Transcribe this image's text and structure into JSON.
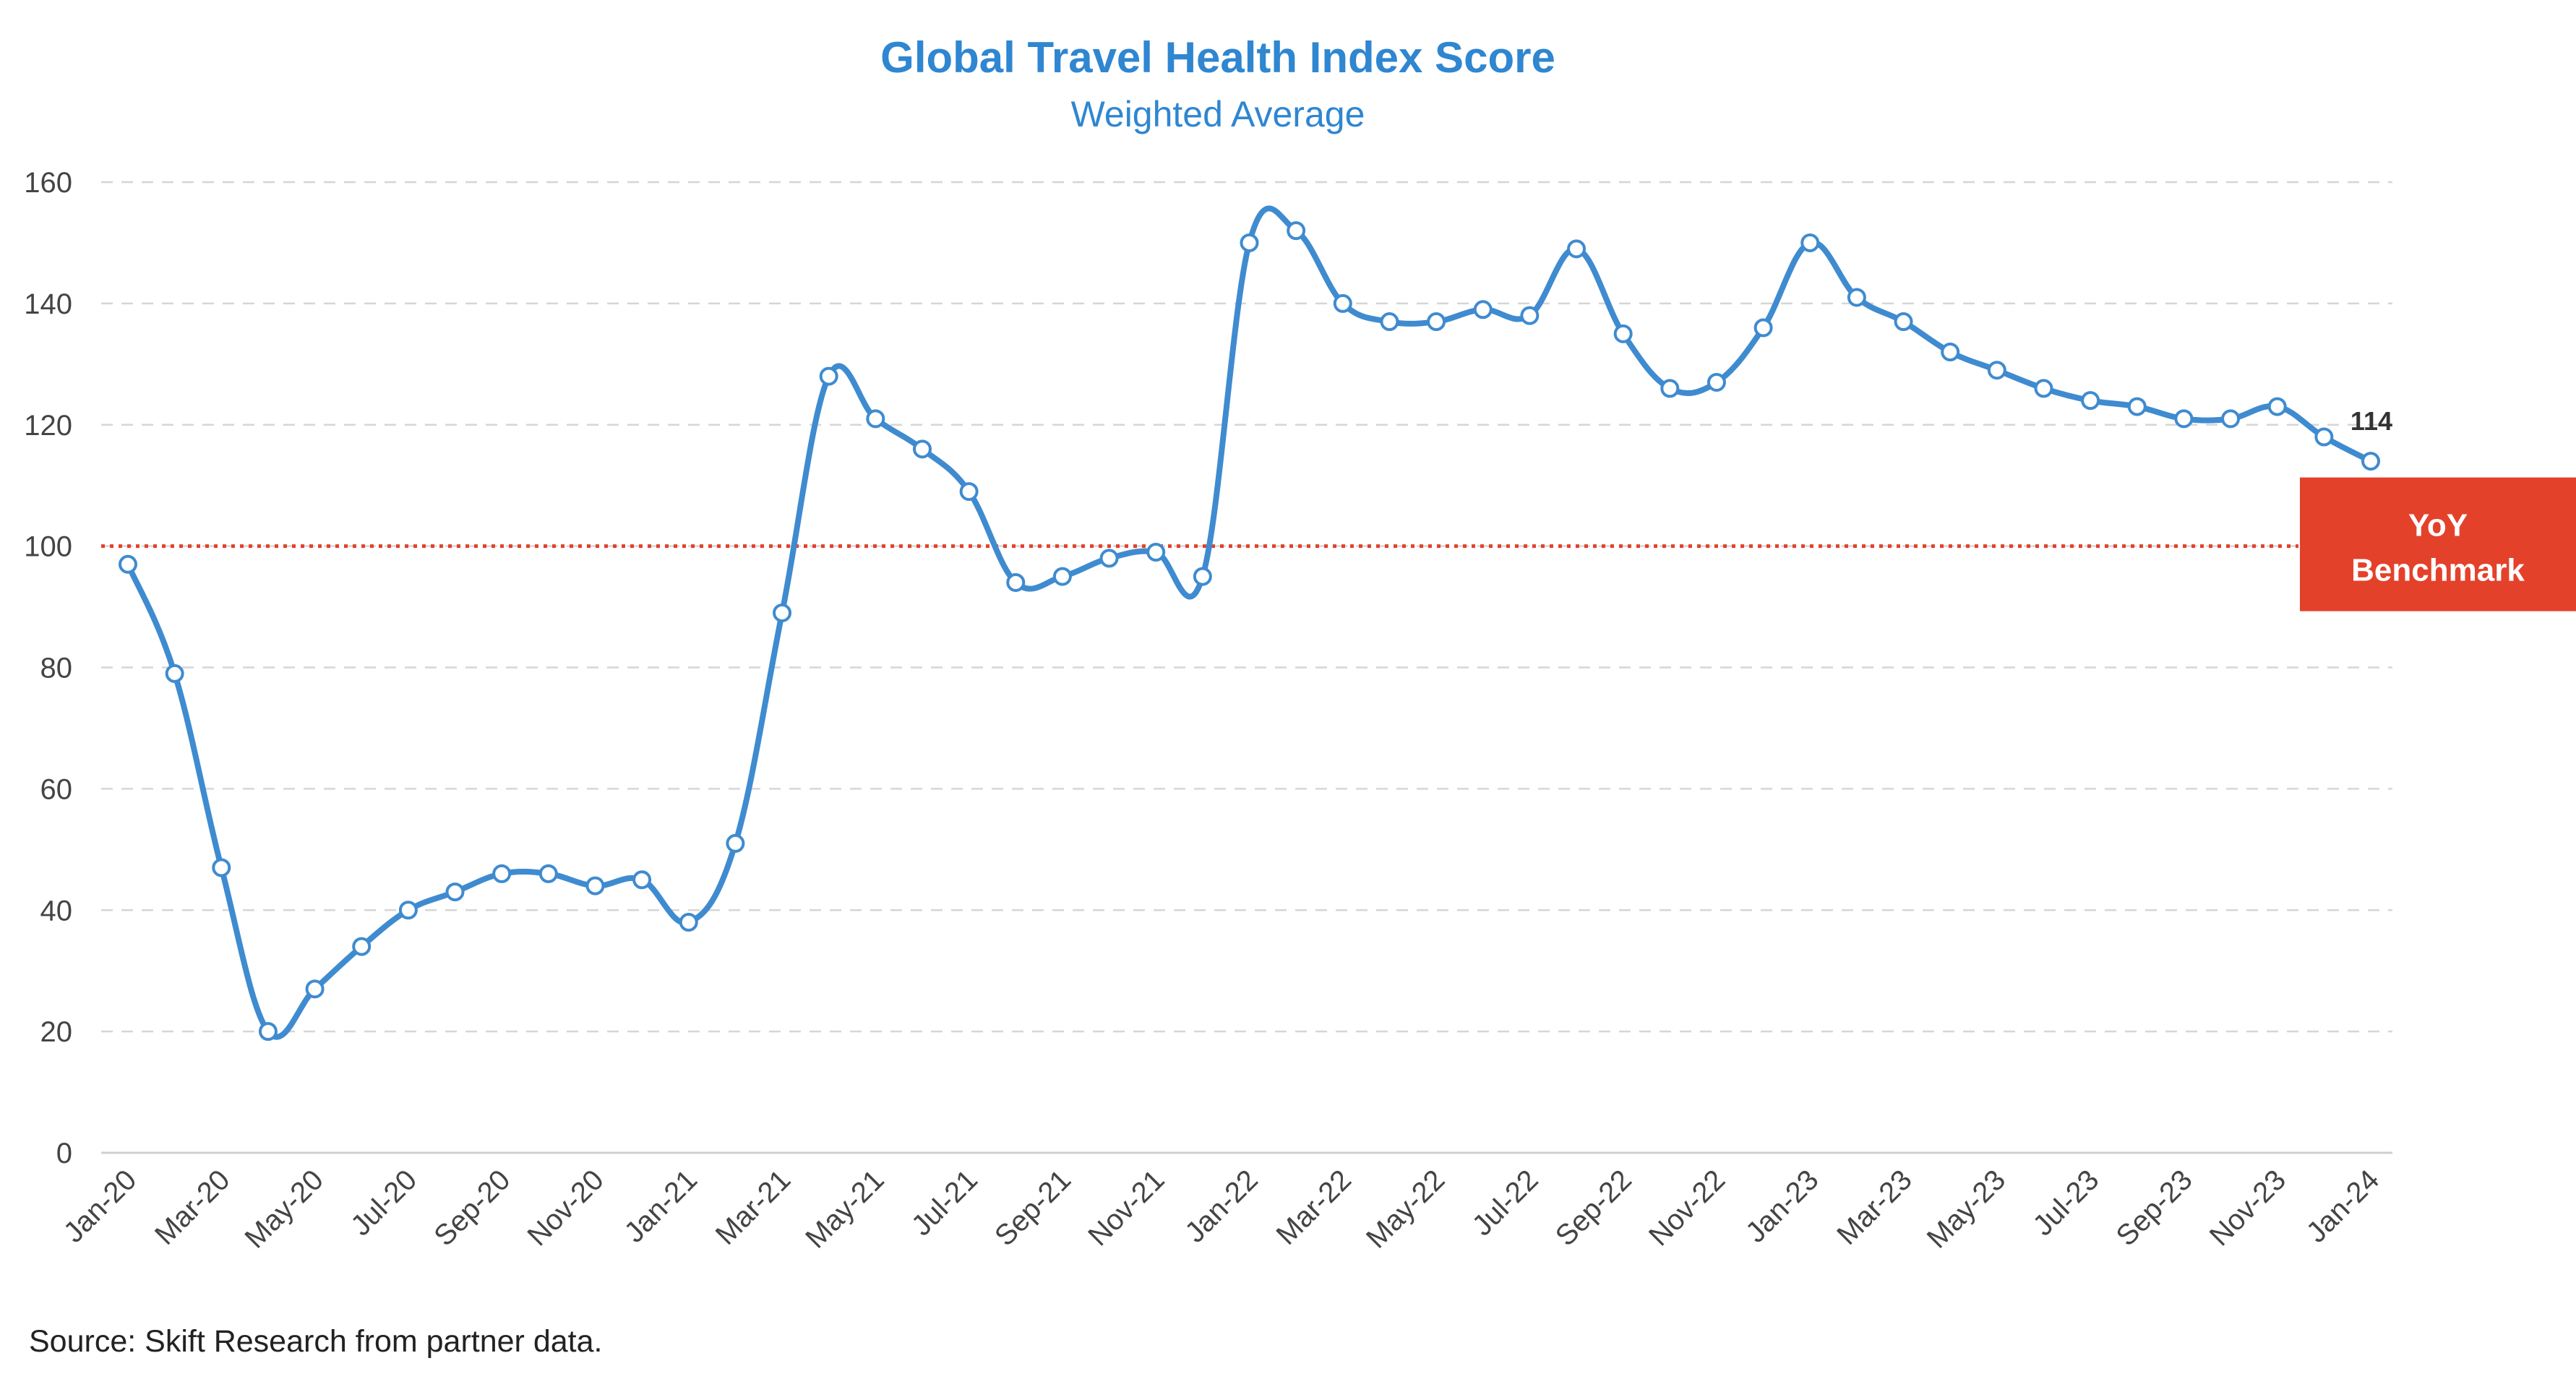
{
  "chart_data": {
    "type": "line",
    "title": "Global Travel Health Index Score",
    "subtitle": "Weighted Average",
    "xlabel": "",
    "ylabel": "",
    "ylim": [
      0,
      160
    ],
    "yticks": [
      0,
      20,
      40,
      60,
      80,
      100,
      120,
      140,
      160
    ],
    "grid": true,
    "x": [
      "Jan-20",
      "Feb-20",
      "Mar-20",
      "Apr-20",
      "May-20",
      "Jun-20",
      "Jul-20",
      "Aug-20",
      "Sep-20",
      "Oct-20",
      "Nov-20",
      "Dec-20",
      "Jan-21",
      "Feb-21",
      "Mar-21",
      "Apr-21",
      "May-21",
      "Jun-21",
      "Jul-21",
      "Aug-21",
      "Sep-21",
      "Oct-21",
      "Nov-21",
      "Dec-21",
      "Jan-22",
      "Feb-22",
      "Mar-22",
      "Apr-22",
      "May-22",
      "Jun-22",
      "Jul-22",
      "Aug-22",
      "Sep-22",
      "Oct-22",
      "Nov-22",
      "Dec-22",
      "Jan-23",
      "Feb-23",
      "Mar-23",
      "Apr-23",
      "May-23",
      "Jun-23",
      "Jul-23",
      "Aug-23",
      "Sep-23",
      "Oct-23",
      "Nov-23",
      "Dec-23",
      "Jan-24"
    ],
    "xtick_labels": [
      "Jan-20",
      "Mar-20",
      "May-20",
      "Jul-20",
      "Sep-20",
      "Nov-20",
      "Jan-21",
      "Mar-21",
      "May-21",
      "Jul-21",
      "Sep-21",
      "Nov-21",
      "Jan-22",
      "Mar-22",
      "May-22",
      "Jul-22",
      "Sep-22",
      "Nov-22",
      "Jan-23",
      "Mar-23",
      "May-23",
      "Jul-23",
      "Sep-23",
      "Nov-23",
      "Jan-24"
    ],
    "series": [
      {
        "values": [
          97,
          79,
          47,
          20,
          27,
          34,
          40,
          43,
          46,
          46,
          44,
          45,
          38,
          51,
          89,
          128,
          121,
          116,
          109,
          94,
          95,
          98,
          99,
          95,
          150,
          152,
          140,
          137,
          137,
          139,
          138,
          149,
          135,
          126,
          127,
          136,
          150,
          141,
          137,
          132,
          129,
          126,
          124,
          123,
          121,
          121,
          123,
          118,
          114
        ],
        "color": "#3f8bd0"
      }
    ],
    "last_value_label": "114",
    "reference_line": {
      "value": 100,
      "label": "YoY Benchmark",
      "color": "#e4412b"
    },
    "source": "Source: Skift Research from partner data."
  }
}
